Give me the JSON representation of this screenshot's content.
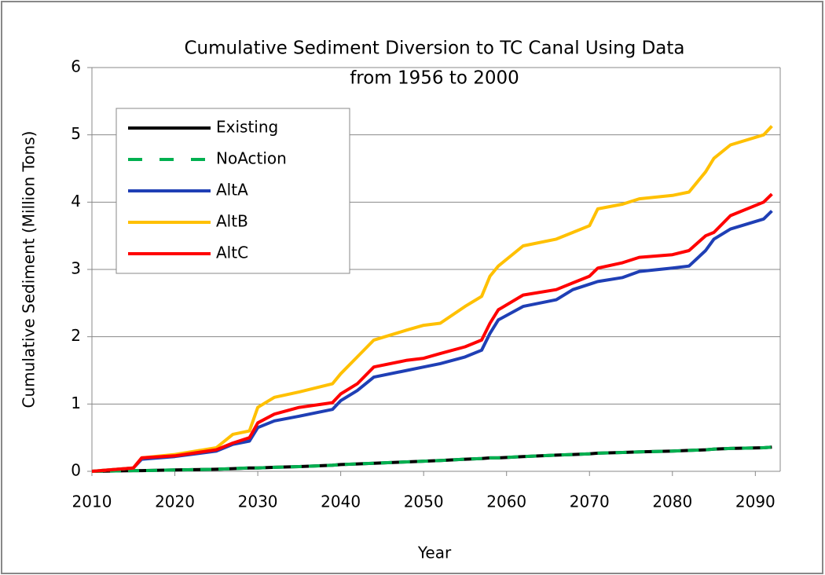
{
  "chart_data": {
    "type": "line",
    "title": [
      "Cumulative Sediment  Diversion to TC   Canal Using Data",
      "from 1956 to 2000"
    ],
    "x_label": "Year",
    "y_label": "Cumulative Sediment (Million Tons)",
    "x": [
      2010,
      2015,
      2016,
      2020,
      2025,
      2027,
      2029,
      2030,
      2032,
      2035,
      2039,
      2040,
      2042,
      2044,
      2048,
      2050,
      2052,
      2055,
      2057,
      2058,
      2059,
      2062,
      2066,
      2068,
      2070,
      2071,
      2074,
      2076,
      2080,
      2082,
      2084,
      2085,
      2087,
      2091,
      2092
    ],
    "series": [
      {
        "name": "Existing",
        "color": "#000000",
        "dash": false,
        "values": [
          0,
          0.01,
          0.01,
          0.02,
          0.03,
          0.04,
          0.05,
          0.05,
          0.06,
          0.07,
          0.09,
          0.1,
          0.11,
          0.12,
          0.14,
          0.15,
          0.16,
          0.18,
          0.19,
          0.2,
          0.2,
          0.22,
          0.24,
          0.25,
          0.26,
          0.27,
          0.28,
          0.29,
          0.3,
          0.31,
          0.32,
          0.33,
          0.34,
          0.35,
          0.36
        ]
      },
      {
        "name": "NoAction",
        "color": "#00b050",
        "dash": true,
        "values": [
          0,
          0.01,
          0.01,
          0.02,
          0.03,
          0.04,
          0.05,
          0.05,
          0.06,
          0.07,
          0.09,
          0.1,
          0.11,
          0.12,
          0.14,
          0.15,
          0.16,
          0.18,
          0.19,
          0.2,
          0.2,
          0.22,
          0.24,
          0.25,
          0.26,
          0.27,
          0.28,
          0.29,
          0.3,
          0.31,
          0.32,
          0.33,
          0.34,
          0.35,
          0.36
        ]
      },
      {
        "name": "AltA",
        "color": "#1f3fb5",
        "dash": false,
        "values": [
          0,
          0.05,
          0.18,
          0.22,
          0.3,
          0.4,
          0.45,
          0.65,
          0.75,
          0.82,
          0.92,
          1.05,
          1.2,
          1.4,
          1.5,
          1.55,
          1.6,
          1.7,
          1.8,
          2.05,
          2.25,
          2.45,
          2.55,
          2.7,
          2.78,
          2.82,
          2.88,
          2.97,
          3.02,
          3.05,
          3.28,
          3.45,
          3.6,
          3.75,
          3.87
        ]
      },
      {
        "name": "AltB",
        "color": "#ffc000",
        "dash": false,
        "values": [
          0,
          0.05,
          0.2,
          0.25,
          0.35,
          0.55,
          0.6,
          0.95,
          1.1,
          1.18,
          1.3,
          1.45,
          1.7,
          1.95,
          2.1,
          2.17,
          2.2,
          2.45,
          2.6,
          2.9,
          3.05,
          3.35,
          3.45,
          3.55,
          3.65,
          3.9,
          3.97,
          4.05,
          4.1,
          4.15,
          4.45,
          4.65,
          4.85,
          5.0,
          5.13
        ]
      },
      {
        "name": "AltC",
        "color": "#ff0000",
        "dash": false,
        "values": [
          0,
          0.05,
          0.2,
          0.23,
          0.32,
          0.42,
          0.5,
          0.72,
          0.85,
          0.95,
          1.02,
          1.15,
          1.3,
          1.55,
          1.65,
          1.68,
          1.75,
          1.85,
          1.95,
          2.2,
          2.4,
          2.62,
          2.7,
          2.8,
          2.9,
          3.02,
          3.1,
          3.18,
          3.22,
          3.28,
          3.5,
          3.55,
          3.8,
          4.0,
          4.12
        ]
      }
    ],
    "xlim": [
      2010,
      2093
    ],
    "xticks": [
      2010,
      2020,
      2030,
      2040,
      2050,
      2060,
      2070,
      2080,
      2090
    ],
    "ylim": [
      0,
      6
    ],
    "yticks": [
      0,
      1,
      2,
      3,
      4,
      5,
      6
    ],
    "grid": true,
    "legend": "upper left"
  }
}
